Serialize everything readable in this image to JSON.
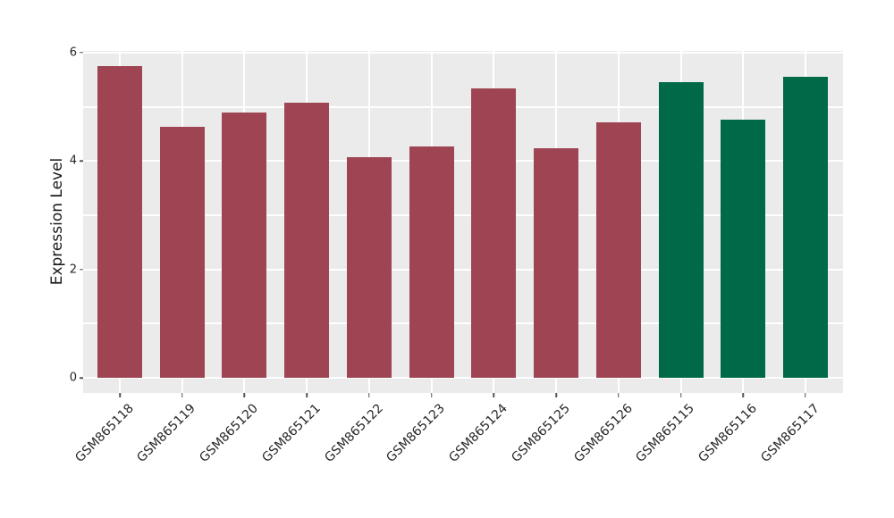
{
  "chart_data": {
    "type": "bar",
    "title": "",
    "ylabel": "Expression Level",
    "xlabel": "",
    "categories": [
      "GSM865118",
      "GSM865119",
      "GSM865120",
      "GSM865121",
      "GSM865122",
      "GSM865123",
      "GSM865124",
      "GSM865125",
      "GSM865126",
      "GSM865115",
      "GSM865116",
      "GSM865117"
    ],
    "values": [
      5.75,
      4.63,
      4.9,
      5.08,
      4.07,
      4.27,
      5.34,
      4.24,
      4.71,
      5.46,
      4.77,
      5.56
    ],
    "bar_colors": [
      "#9E4452",
      "#9E4452",
      "#9E4452",
      "#9E4452",
      "#9E4452",
      "#9E4452",
      "#9E4452",
      "#9E4452",
      "#9E4452",
      "#006948",
      "#006948",
      "#006948"
    ],
    "group_colors": {
      "red_group": "#9E4452",
      "green_group": "#006948"
    },
    "ylim": [
      -0.28,
      6.03
    ],
    "ytick_values": [
      0,
      2,
      4,
      6
    ],
    "ytick_labels": [
      "0",
      "2",
      "4",
      "6"
    ],
    "gridline_values": [
      0,
      1,
      2,
      3,
      4,
      5,
      6
    ],
    "grid_on": true,
    "legend": "none",
    "panel_background": "#EBEBEB",
    "grid_color": "#FFFFFF",
    "figure_background": "#FFFFFF",
    "tick_label_rotation_deg": 45
  }
}
